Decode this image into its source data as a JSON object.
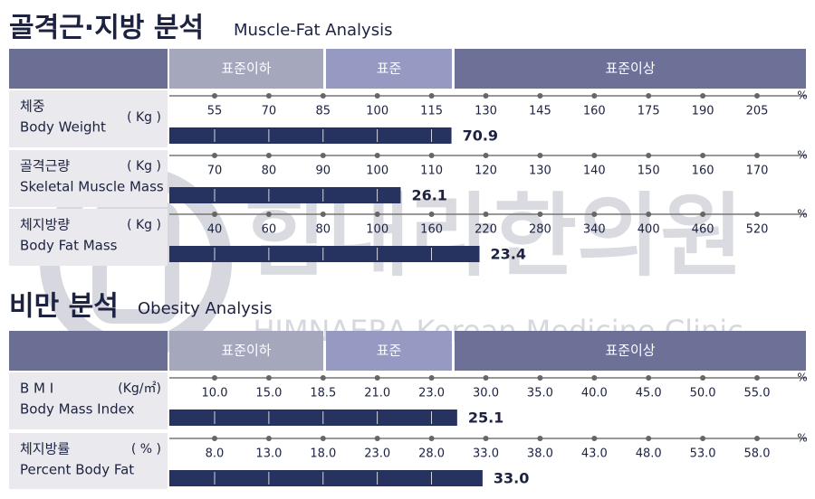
{
  "watermark": {
    "name_ko": "힘내라한의원",
    "name_en": "HIMNAERA Korean Medicine Clinic"
  },
  "sections": [
    {
      "title_ko": "골격근·지방 분석",
      "title_en": "Muscle-Fat Analysis",
      "bands": [
        "표준이하",
        "표준",
        "표준이상"
      ],
      "axis_unit": "%",
      "rows": [
        {
          "name_ko": "체중",
          "name_en": "Body Weight",
          "unit": "( Kg )",
          "ticks": [
            55,
            70,
            85,
            100,
            115,
            130,
            145,
            160,
            175,
            190,
            205
          ],
          "bar": 120.5,
          "value": 70.9
        },
        {
          "name_ko": "골격근량",
          "name_en": "Skeletal Muscle Mass",
          "unit": "( Kg )",
          "ticks": [
            70,
            80,
            90,
            100,
            110,
            120,
            130,
            140,
            150,
            160,
            170
          ],
          "bar": 104.3,
          "value": 26.1
        },
        {
          "name_ko": "체지방량",
          "name_en": "Body Fat Mass",
          "unit": "( Kg )",
          "ticks": [
            40,
            60,
            80,
            100,
            160,
            220,
            280,
            340,
            400,
            460,
            520
          ],
          "bar": 213,
          "value": 23.4
        }
      ]
    },
    {
      "title_ko": "비만 분석",
      "title_en": "Obesity Analysis",
      "bands": [
        "표준이하",
        "표준",
        "표준이상"
      ],
      "axis_unit": "%",
      "rows": [
        {
          "name_ko": "B M I",
          "name_en": "Body Mass Index",
          "unit": "(Kg/㎡)",
          "ticks": [
            {
              "value": 10,
              "label": "10.0"
            },
            {
              "value": 15,
              "label": "15.0"
            },
            18.5,
            {
              "value": 21,
              "label": "21.0"
            },
            {
              "value": 23,
              "label": "23.0"
            },
            {
              "value": 30,
              "label": "30.0"
            },
            {
              "value": 35,
              "label": "35.0"
            },
            {
              "value": 40,
              "label": "40.0"
            },
            {
              "value": 45,
              "label": "45.0"
            },
            {
              "value": 50,
              "label": "50.0"
            },
            {
              "value": 55,
              "label": "55.0"
            }
          ],
          "bar": 26.3,
          "value": 25.1
        },
        {
          "name_ko": "체지방률",
          "name_en": "Percent Body Fat",
          "unit": "( % )",
          "ticks": [
            {
              "value": 8,
              "label": "8.0"
            },
            {
              "value": 13,
              "label": "13.0"
            },
            {
              "value": 18,
              "label": "18.0"
            },
            {
              "value": 23,
              "label": "23.0"
            },
            {
              "value": 28,
              "label": "28.0"
            },
            {
              "value": 33,
              "label": "33.0"
            },
            {
              "value": 38,
              "label": "38.0"
            },
            {
              "value": 43,
              "label": "43.0"
            },
            {
              "value": 48,
              "label": "48.0"
            },
            {
              "value": 53,
              "label": "53.0"
            },
            {
              "value": 58,
              "label": "58.0"
            }
          ],
          "bar": 32.7,
          "value": {
            "value": 33,
            "label": "33.0"
          }
        }
      ]
    }
  ]
}
